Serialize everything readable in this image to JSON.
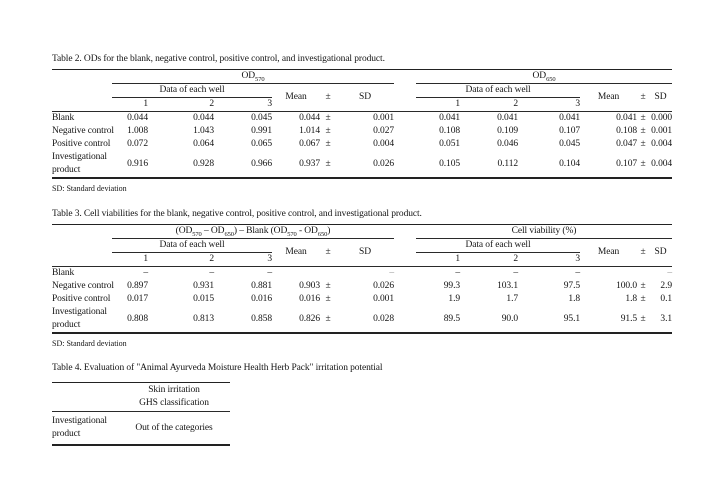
{
  "tables": {
    "od": {
      "title": "Table 2. ODs for the blank, negative control, positive control, and investigational product.",
      "groups": [
        {
          "parts": [
            {
              "t": "OD"
            },
            {
              "t": "570",
              "sub": true
            }
          ]
        },
        {
          "parts": [
            {
              "t": "OD"
            },
            {
              "t": "650",
              "sub": true
            }
          ]
        }
      ],
      "header": {
        "wells_label": "Data of each well",
        "well_cols": [
          "1",
          "2",
          "3"
        ],
        "mean_label": "Mean",
        "pm_label": "±",
        "sd_label": "SD"
      },
      "rows": [
        {
          "label": "Blank",
          "left": {
            "wells": [
              "0.044",
              "0.044",
              "0.045"
            ],
            "mean": "0.044",
            "pm": "±",
            "sd": "0.001"
          },
          "right": {
            "wells": [
              "0.041",
              "0.041",
              "0.041"
            ],
            "mean": "0.041",
            "pm": "±",
            "sd": "0.000"
          }
        },
        {
          "label": "Negative control",
          "left": {
            "wells": [
              "1.008",
              "1.043",
              "0.991"
            ],
            "mean": "1.014",
            "pm": "±",
            "sd": "0.027"
          },
          "right": {
            "wells": [
              "0.108",
              "0.109",
              "0.107"
            ],
            "mean": "0.108",
            "pm": "±",
            "sd": "0.001"
          }
        },
        {
          "label": "Positive control",
          "left": {
            "wells": [
              "0.072",
              "0.064",
              "0.065"
            ],
            "mean": "0.067",
            "pm": "±",
            "sd": "0.004"
          },
          "right": {
            "wells": [
              "0.051",
              "0.046",
              "0.045"
            ],
            "mean": "0.047",
            "pm": "±",
            "sd": "0.004"
          }
        },
        {
          "label": "Investigational product",
          "left": {
            "wells": [
              "0.916",
              "0.928",
              "0.966"
            ],
            "mean": "0.937",
            "pm": "±",
            "sd": "0.026"
          },
          "right": {
            "wells": [
              "0.105",
              "0.112",
              "0.104"
            ],
            "mean": "0.107",
            "pm": "±",
            "sd": "0.004"
          }
        }
      ],
      "footnote": "SD: Standard deviation"
    },
    "viability": {
      "title": "Table 3. Cell viabilities for the blank, negative control, positive control, and investigational product.",
      "groups": [
        {
          "parts": [
            {
              "t": "(OD"
            },
            {
              "t": "570",
              "sub": true
            },
            {
              "t": " – OD"
            },
            {
              "t": "650",
              "sub": true
            },
            {
              "t": ") – Blank (OD"
            },
            {
              "t": "570",
              "sub": true
            },
            {
              "t": " - OD"
            },
            {
              "t": "650",
              "sub": true
            },
            {
              "t": ")"
            }
          ]
        },
        {
          "parts": [
            {
              "t": "Cell viability (%)"
            }
          ]
        }
      ],
      "header": {
        "wells_label": "Data of each well",
        "well_cols": [
          "1",
          "2",
          "3"
        ],
        "mean_label": "Mean",
        "pm_label": "±",
        "sd_label": "SD"
      },
      "rows": [
        {
          "label": "Blank",
          "left": {
            "wells": [
              "–",
              "–",
              "–"
            ],
            "mean": "",
            "pm": "",
            "sd": "–"
          },
          "right": {
            "wells": [
              "–",
              "–",
              "–"
            ],
            "mean": "",
            "pm": "",
            "sd": "–"
          }
        },
        {
          "label": "Negative control",
          "left": {
            "wells": [
              "0.897",
              "0.931",
              "0.881"
            ],
            "mean": "0.903",
            "pm": "±",
            "sd": "0.026"
          },
          "right": {
            "wells": [
              "99.3",
              "103.1",
              "97.5"
            ],
            "mean": "100.0",
            "pm": "±",
            "sd": "2.9"
          }
        },
        {
          "label": "Positive control",
          "left": {
            "wells": [
              "0.017",
              "0.015",
              "0.016"
            ],
            "mean": "0.016",
            "pm": "±",
            "sd": "0.001"
          },
          "right": {
            "wells": [
              "1.9",
              "1.7",
              "1.8"
            ],
            "mean": "1.8",
            "pm": "±",
            "sd": "0.1"
          }
        },
        {
          "label": "Investigational product",
          "left": {
            "wells": [
              "0.808",
              "0.813",
              "0.858"
            ],
            "mean": "0.826",
            "pm": "±",
            "sd": "0.028"
          },
          "right": {
            "wells": [
              "89.5",
              "90.0",
              "95.1"
            ],
            "mean": "91.5",
            "pm": "±",
            "sd": "3.1"
          }
        }
      ],
      "footnote": "SD: Standard deviation"
    },
    "irritation": {
      "title": "Table 4. Evaluation of \"Animal Ayurveda Moisture Health Herb Pack\" irritation potential",
      "header_line1": "Skin irritation",
      "header_line2": "GHS classification",
      "row": {
        "label": "Investigational product",
        "value": "Out of the categories"
      }
    }
  }
}
